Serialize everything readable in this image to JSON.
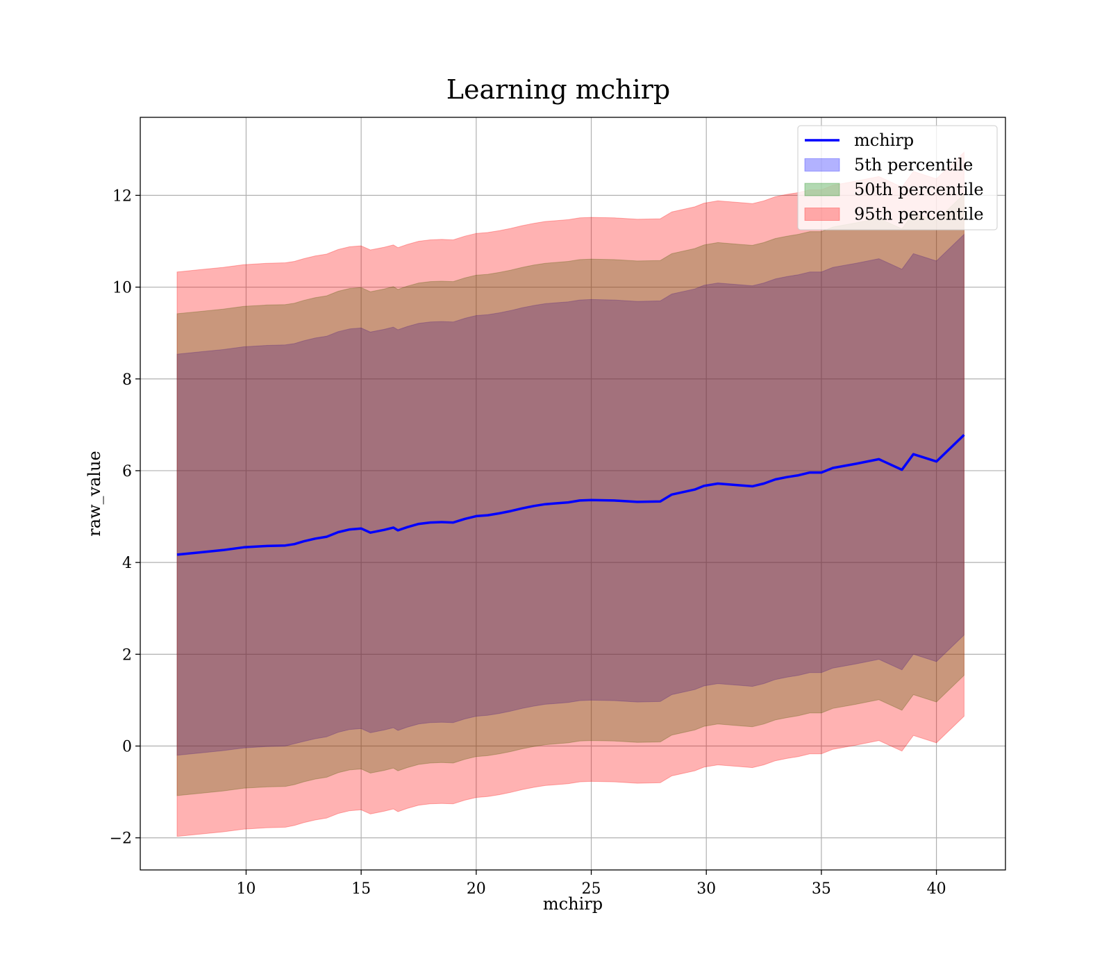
{
  "chart_data": {
    "type": "area",
    "title": "Learning mchirp",
    "xlabel": "mchirp",
    "ylabel": "raw_value",
    "xlim": [
      5.4,
      43.0
    ],
    "ylim": [
      -2.7,
      13.7
    ],
    "grid": true,
    "legend_position": "upper right",
    "x_ticks": [
      10,
      15,
      20,
      25,
      30,
      35,
      40
    ],
    "x_tick_labels": [
      "10",
      "15",
      "20",
      "25",
      "30",
      "35",
      "40"
    ],
    "y_ticks": [
      -2,
      0,
      2,
      4,
      6,
      8,
      10,
      12
    ],
    "y_tick_labels": [
      "−2",
      "0",
      "2",
      "4",
      "6",
      "8",
      "10",
      "12"
    ],
    "x": [
      7.0,
      8.0,
      9.0,
      9.9,
      10.9,
      11.7,
      12.1,
      12.5,
      13.0,
      13.5,
      14.0,
      14.5,
      15.0,
      15.4,
      16.0,
      16.4,
      16.6,
      17.0,
      17.5,
      18.0,
      18.5,
      19.0,
      19.5,
      20.0,
      20.5,
      21.0,
      21.5,
      22.0,
      22.5,
      23.0,
      23.5,
      24.0,
      24.5,
      25.0,
      26.0,
      27.0,
      28.0,
      28.5,
      29.5,
      29.9,
      30.5,
      31.5,
      32.0,
      32.5,
      33.0,
      33.5,
      34.0,
      34.5,
      35.0,
      35.5,
      36.5,
      37.5,
      38.5,
      39.0,
      40.0,
      41.2
    ],
    "series": [
      {
        "name": "mchirp",
        "color": "#0000ff",
        "values": [
          4.17,
          4.22,
          4.27,
          4.33,
          4.36,
          4.37,
          4.4,
          4.46,
          4.52,
          4.56,
          4.66,
          4.72,
          4.74,
          4.65,
          4.71,
          4.76,
          4.7,
          4.77,
          4.84,
          4.87,
          4.88,
          4.87,
          4.95,
          5.01,
          5.03,
          5.07,
          5.12,
          5.18,
          5.23,
          5.27,
          5.29,
          5.31,
          5.35,
          5.36,
          5.35,
          5.32,
          5.33,
          5.48,
          5.59,
          5.67,
          5.72,
          5.68,
          5.66,
          5.72,
          5.81,
          5.86,
          5.9,
          5.96,
          5.96,
          6.06,
          6.15,
          6.25,
          6.02,
          6.36,
          6.2,
          6.78
        ]
      },
      {
        "name": "5th percentile",
        "color": "#0000ff",
        "lower": [
          -0.2,
          -0.15,
          -0.1,
          -0.04,
          -0.01,
          0.0,
          0.05,
          0.1,
          0.16,
          0.2,
          0.3,
          0.36,
          0.38,
          0.29,
          0.35,
          0.4,
          0.34,
          0.41,
          0.48,
          0.51,
          0.52,
          0.51,
          0.59,
          0.65,
          0.67,
          0.71,
          0.76,
          0.82,
          0.87,
          0.91,
          0.93,
          0.95,
          0.99,
          1.0,
          0.99,
          0.96,
          0.97,
          1.12,
          1.23,
          1.31,
          1.36,
          1.32,
          1.3,
          1.36,
          1.45,
          1.5,
          1.54,
          1.6,
          1.6,
          1.7,
          1.79,
          1.89,
          1.66,
          2.0,
          1.84,
          2.42
        ],
        "upper": [
          8.54,
          8.59,
          8.64,
          8.7,
          8.73,
          8.74,
          8.77,
          8.83,
          8.89,
          8.93,
          9.03,
          9.09,
          9.11,
          9.02,
          9.08,
          9.13,
          9.07,
          9.14,
          9.21,
          9.24,
          9.25,
          9.24,
          9.32,
          9.38,
          9.4,
          9.44,
          9.49,
          9.55,
          9.6,
          9.64,
          9.66,
          9.68,
          9.72,
          9.73,
          9.72,
          9.69,
          9.7,
          9.85,
          9.96,
          10.04,
          10.09,
          10.05,
          10.03,
          10.09,
          10.18,
          10.23,
          10.27,
          10.33,
          10.33,
          10.43,
          10.52,
          10.62,
          10.39,
          10.73,
          10.57,
          11.15
        ]
      },
      {
        "name": "50th percentile",
        "color": "#008000",
        "lower": [
          -1.08,
          -1.03,
          -0.98,
          -0.92,
          -0.89,
          -0.88,
          -0.84,
          -0.78,
          -0.72,
          -0.68,
          -0.58,
          -0.52,
          -0.5,
          -0.59,
          -0.53,
          -0.48,
          -0.54,
          -0.47,
          -0.4,
          -0.37,
          -0.36,
          -0.37,
          -0.29,
          -0.23,
          -0.21,
          -0.17,
          -0.12,
          -0.06,
          -0.01,
          0.03,
          0.05,
          0.07,
          0.11,
          0.12,
          0.11,
          0.08,
          0.09,
          0.24,
          0.35,
          0.43,
          0.48,
          0.44,
          0.42,
          0.48,
          0.57,
          0.62,
          0.66,
          0.72,
          0.72,
          0.82,
          0.91,
          1.01,
          0.78,
          1.12,
          0.96,
          1.54
        ],
        "upper": [
          9.42,
          9.47,
          9.52,
          9.58,
          9.61,
          9.62,
          9.65,
          9.71,
          9.77,
          9.81,
          9.91,
          9.97,
          9.99,
          9.9,
          9.96,
          10.01,
          9.95,
          10.02,
          10.09,
          10.12,
          10.13,
          10.12,
          10.2,
          10.26,
          10.28,
          10.32,
          10.37,
          10.43,
          10.48,
          10.52,
          10.54,
          10.56,
          10.6,
          10.61,
          10.6,
          10.57,
          10.58,
          10.73,
          10.84,
          10.92,
          10.97,
          10.93,
          10.91,
          10.97,
          11.06,
          11.11,
          11.15,
          11.21,
          11.21,
          11.31,
          11.4,
          11.5,
          11.27,
          11.61,
          11.45,
          12.03
        ]
      },
      {
        "name": "95th percentile",
        "color": "#ff0000",
        "lower": [
          -1.97,
          -1.92,
          -1.87,
          -1.81,
          -1.78,
          -1.77,
          -1.73,
          -1.67,
          -1.61,
          -1.57,
          -1.47,
          -1.41,
          -1.39,
          -1.48,
          -1.42,
          -1.37,
          -1.43,
          -1.36,
          -1.29,
          -1.26,
          -1.25,
          -1.26,
          -1.18,
          -1.12,
          -1.1,
          -1.06,
          -1.01,
          -0.95,
          -0.9,
          -0.86,
          -0.84,
          -0.82,
          -0.78,
          -0.77,
          -0.78,
          -0.81,
          -0.8,
          -0.65,
          -0.54,
          -0.46,
          -0.41,
          -0.45,
          -0.47,
          -0.41,
          -0.32,
          -0.27,
          -0.23,
          -0.17,
          -0.17,
          -0.07,
          0.02,
          0.12,
          -0.11,
          0.23,
          0.07,
          0.65
        ],
        "upper": [
          10.33,
          10.38,
          10.43,
          10.49,
          10.52,
          10.53,
          10.56,
          10.62,
          10.68,
          10.72,
          10.82,
          10.88,
          10.9,
          10.81,
          10.87,
          10.92,
          10.86,
          10.93,
          11.0,
          11.03,
          11.04,
          11.03,
          11.11,
          11.17,
          11.19,
          11.23,
          11.28,
          11.34,
          11.39,
          11.43,
          11.45,
          11.47,
          11.51,
          11.52,
          11.51,
          11.48,
          11.49,
          11.64,
          11.75,
          11.83,
          11.88,
          11.84,
          11.82,
          11.88,
          11.97,
          12.02,
          12.06,
          12.12,
          12.12,
          12.22,
          12.31,
          12.41,
          12.18,
          12.52,
          12.36,
          12.94
        ]
      }
    ]
  }
}
